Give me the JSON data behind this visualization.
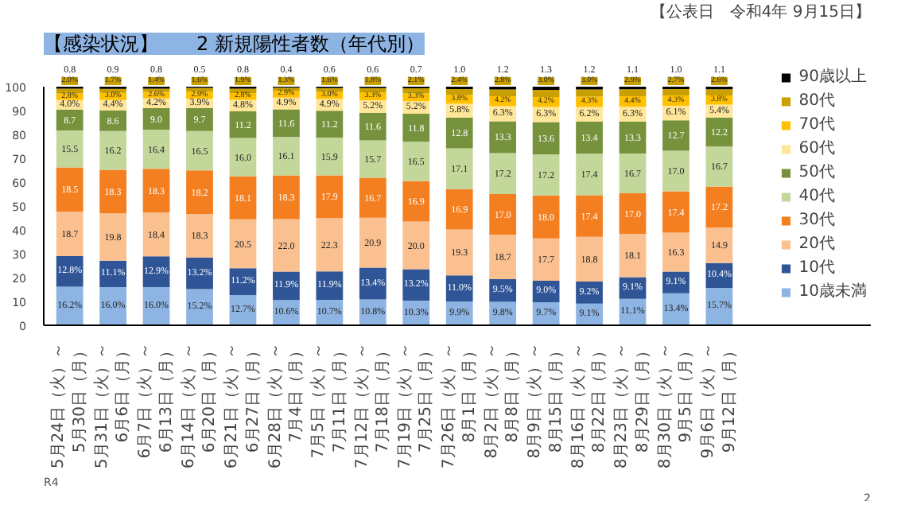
{
  "chart_data": {
    "type": "bar",
    "stacked": true,
    "title": "【感染状況】　　2 新規陽性者数（年代別）",
    "categories": [
      "5月24日（火）～5月30日（月）",
      "5月31日（火）～6月6日（月）",
      "6月7日（火）～6月13日（月）",
      "6月14日（火）～6月20日（月）",
      "6月21日（火）～6月27日（月）",
      "6月28日（火）～7月4日（月）",
      "7月5日（火）～7月11日（月）",
      "7月12日（火）～7月18日（月）",
      "7月19日（火）～7月25日（月）",
      "7月26日（火）～8月1日（月）",
      "8月2日（火）～8月8日（月）",
      "8月9日（火）～8月15日（月）",
      "8月16日（火）～8月22日（月）",
      "8月23日（火）～8月29日（月）",
      "8月30日（火）～9月5日（月）",
      "9月6日（火）～9月12日（月）"
    ],
    "series": [
      {
        "name": "10歳未満",
        "color": "#8db4e2",
        "values": [
          16.2,
          16.0,
          16.0,
          15.2,
          12.7,
          10.6,
          10.7,
          10.8,
          10.3,
          9.9,
          9.8,
          9.7,
          9.1,
          11.1,
          13.4,
          15.7
        ],
        "value_labels": [
          "16.2%",
          "16.0%",
          "16.0%",
          "15.2%",
          "12.7%",
          "10.6%",
          "10.7%",
          "10.8%",
          "10.3%",
          "9.9%",
          "9.8%",
          "9.7%",
          "9.1%",
          "11.1%",
          "13.4%",
          "15.7%"
        ]
      },
      {
        "name": "10代",
        "color": "#2f5597",
        "values": [
          12.8,
          11.1,
          12.9,
          13.2,
          11.2,
          11.9,
          11.9,
          13.4,
          13.2,
          11.0,
          9.5,
          9.0,
          9.2,
          9.1,
          9.1,
          10.4
        ],
        "value_labels": [
          "12.8%",
          "11.1%",
          "12.9%",
          "13.2%",
          "11.2%",
          "11.9%",
          "11.9%",
          "13.4%",
          "13.2%",
          "11.0%",
          "9.5%",
          "9.0%",
          "9.2%",
          "9.1%",
          "9.1%",
          "10.4%"
        ]
      },
      {
        "name": "20代",
        "color": "#fac090",
        "values": [
          18.7,
          19.8,
          18.4,
          18.3,
          20.5,
          22.0,
          22.3,
          20.9,
          20.0,
          19.3,
          18.7,
          17.7,
          18.8,
          18.1,
          16.3,
          14.9
        ],
        "value_labels": [
          "18.7",
          "19.8",
          "18.4",
          "18.3",
          "20.5",
          "22.0",
          "22.3",
          "20.9",
          "20.0",
          "19.3",
          "18.7",
          "17.7",
          "18.8",
          "18.1",
          "16.3",
          "14.9"
        ]
      },
      {
        "name": "30代",
        "color": "#f47f20",
        "values": [
          18.5,
          18.3,
          18.3,
          18.2,
          18.1,
          18.3,
          17.9,
          16.7,
          16.9,
          16.9,
          17.0,
          18.0,
          17.4,
          17.0,
          17.4,
          17.2
        ],
        "value_labels": [
          "18.5",
          "18.3",
          "18.3",
          "18.2",
          "18.1",
          "18.3",
          "17.9",
          "16.7",
          "16.9",
          "16.9",
          "17.0",
          "18.0",
          "17.4",
          "17.0",
          "17.4",
          "17.2"
        ]
      },
      {
        "name": "40代",
        "color": "#c4d79b",
        "values": [
          15.5,
          16.2,
          16.4,
          16.5,
          16.0,
          16.1,
          15.9,
          15.7,
          16.5,
          17.1,
          17.2,
          17.2,
          17.4,
          16.7,
          17.0,
          16.7
        ],
        "value_labels": [
          "15.5",
          "16.2",
          "16.4",
          "16.5",
          "16.0",
          "16.1",
          "15.9",
          "15.7",
          "16.5",
          "17.1",
          "17.2",
          "17.2",
          "17.4",
          "16.7",
          "17.0",
          "16.7"
        ]
      },
      {
        "name": "50代",
        "color": "#76923c",
        "values": [
          8.7,
          8.6,
          9.0,
          9.7,
          11.2,
          11.6,
          11.2,
          11.6,
          11.8,
          12.8,
          13.3,
          13.6,
          13.4,
          13.3,
          12.7,
          12.2
        ],
        "value_labels": [
          "8.7",
          "8.6",
          "9.0",
          "9.7",
          "11.2",
          "11.6",
          "11.2",
          "11.6",
          "11.8",
          "12.8",
          "13.3",
          "13.6",
          "13.4",
          "13.3",
          "12.7",
          "12.2"
        ]
      },
      {
        "name": "60代",
        "color": "#ffe699",
        "values": [
          4.0,
          4.4,
          4.2,
          3.9,
          4.8,
          4.9,
          4.9,
          5.2,
          5.2,
          5.8,
          6.3,
          6.3,
          6.2,
          6.3,
          6.1,
          5.4
        ],
        "value_labels": [
          "4.0%",
          "4.4%",
          "4.2%",
          "3.9%",
          "4.8%",
          "4.9%",
          "4.9%",
          "5.2%",
          "5.2%",
          "5.8%",
          "6.3%",
          "6.3%",
          "6.2%",
          "6.3%",
          "6.1%",
          "5.4%"
        ]
      },
      {
        "name": "70代",
        "color": "#ffc000",
        "values": [
          2.8,
          3.0,
          2.6,
          2.9,
          2.8,
          2.9,
          3.0,
          3.3,
          3.3,
          3.8,
          4.2,
          4.2,
          4.3,
          4.4,
          4.3,
          3.8
        ],
        "value_labels": [
          "2.8%",
          "3.0%",
          "2.6%",
          "2.9%",
          "2.8%",
          "2.9%",
          "3.0%",
          "3.3%",
          "3.3%",
          "3.8%",
          "4.2%",
          "4.2%",
          "4.3%",
          "4.4%",
          "4.3%",
          "3.8%"
        ]
      },
      {
        "name": "80代",
        "color": "#c9a000",
        "values": [
          2.0,
          1.7,
          1.4,
          1.6,
          1.9,
          1.3,
          1.6,
          1.8,
          2.1,
          2.4,
          2.8,
          3.0,
          3.0,
          2.9,
          2.7,
          2.6
        ],
        "value_labels": [
          "2.0%",
          "1.7%",
          "1.4%",
          "1.6%",
          "1.9%",
          "1.3%",
          "1.6%",
          "1.8%",
          "2.1%",
          "2.4%",
          "2.8%",
          "3.0%",
          "3.0%",
          "2.9%",
          "2.7%",
          "2.6%"
        ]
      },
      {
        "name": "90歳以上",
        "color": "#000000",
        "values": [
          0.8,
          0.9,
          0.8,
          0.5,
          0.8,
          0.4,
          0.6,
          0.6,
          0.7,
          1.0,
          1.2,
          1.3,
          1.2,
          1.1,
          1.0,
          1.1
        ],
        "value_labels": [
          "0.8",
          "0.9",
          "0.8",
          "0.5",
          "0.8",
          "0.4",
          "0.6",
          "0.6",
          "0.7",
          "1.0",
          "1.2",
          "1.3",
          "1.2",
          "1.1",
          "1.0",
          "1.1"
        ]
      }
    ],
    "ylim": [
      0,
      100
    ],
    "yticks": [
      0,
      10,
      20,
      30,
      40,
      50,
      60,
      70,
      80,
      90,
      100
    ],
    "legend": "right",
    "annotations": [
      "【公表日　令和4年 9月15日】",
      "R4",
      "2"
    ]
  }
}
